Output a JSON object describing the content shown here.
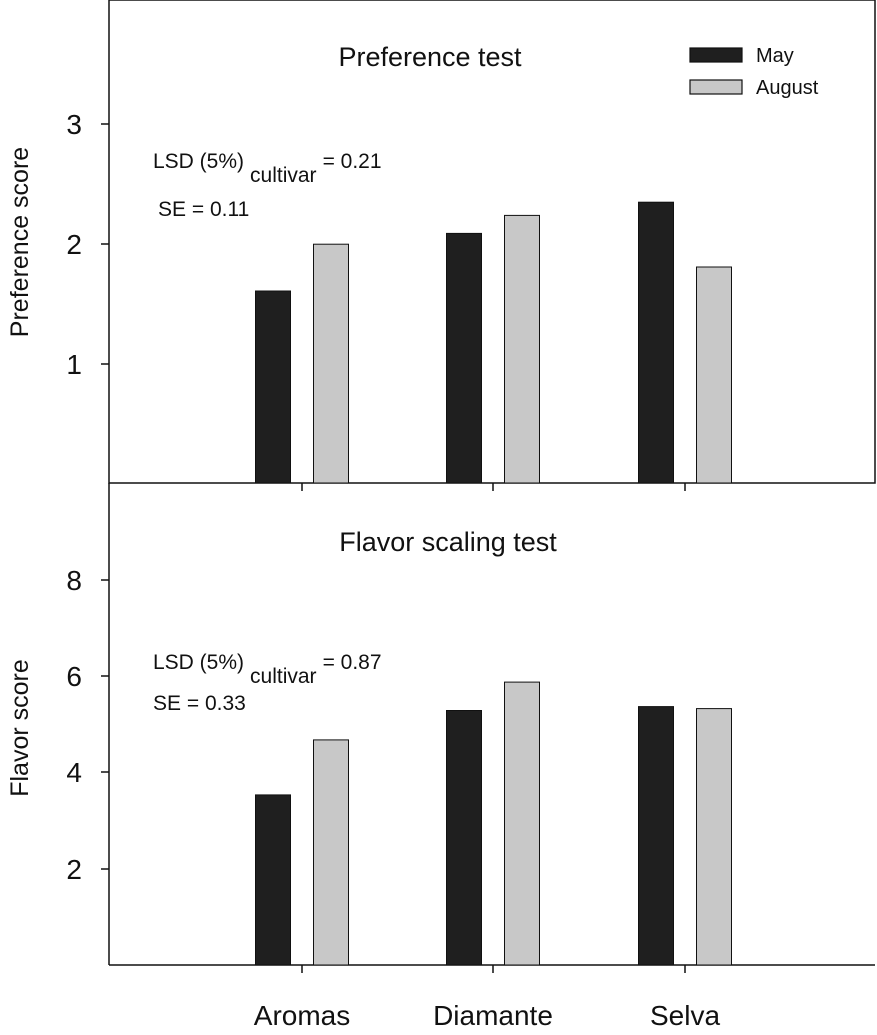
{
  "colors": {
    "may": "#1f1f1f",
    "august": "#c8c8c8",
    "axis": "#111111",
    "background": "#ffffff"
  },
  "legend": {
    "placement": "top-right",
    "items": [
      {
        "label": "May",
        "color": "#1f1f1f"
      },
      {
        "label": "August",
        "color": "#c8c8c8"
      }
    ]
  },
  "categories": [
    "Aromas",
    "Diamante",
    "Selva"
  ],
  "chart_data": [
    {
      "type": "bar",
      "title": "Preference test",
      "ylabel": "Preference score",
      "xlabel": "",
      "ylim": [
        0,
        3
      ],
      "ytick_labels": [
        "1",
        "2",
        "3"
      ],
      "categories": [
        "Aromas",
        "Diamante",
        "Selva"
      ],
      "series": [
        {
          "name": "May",
          "values": [
            1.6,
            2.08,
            2.34
          ]
        },
        {
          "name": "August",
          "values": [
            1.99,
            2.23,
            1.8
          ]
        }
      ],
      "annotations": {
        "lsd": {
          "prefix": "LSD (5%)",
          "subscript": "cultivar",
          "suffix": "= 0.21"
        },
        "se": "SE = 0.11"
      },
      "grid": false
    },
    {
      "type": "bar",
      "title": "Flavor scaling test",
      "ylabel": "Flavor score",
      "xlabel": "",
      "ylim": [
        0,
        8
      ],
      "ytick_labels": [
        "2",
        "4",
        "6",
        "8"
      ],
      "categories": [
        "Aromas",
        "Diamante",
        "Selva"
      ],
      "series": [
        {
          "name": "May",
          "values": [
            3.53,
            5.28,
            5.36
          ]
        },
        {
          "name": "August",
          "values": [
            4.67,
            5.87,
            5.32
          ]
        }
      ],
      "annotations": {
        "lsd": {
          "prefix": "LSD (5%)",
          "subscript": "cultivar",
          "suffix": "= 0.87"
        },
        "se": "SE = 0.33"
      },
      "grid": false
    }
  ]
}
